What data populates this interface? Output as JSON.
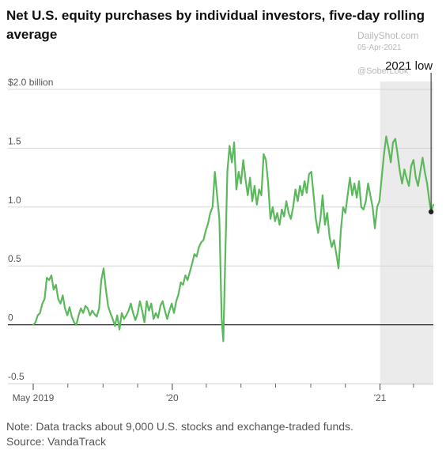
{
  "title": "Net U.S. equity purchases by individual investors, five-day rolling average",
  "watermark": {
    "site": "DailyShot.com",
    "date": "05-Apr-2021",
    "handle": "@SoberLook"
  },
  "note": "Note: Data tracks about 9,000 U.S. stocks and exchange-traded funds.",
  "source": "Source: VandaTrack",
  "colors": {
    "line": "#5cb85c",
    "shade": "#ebebeb",
    "grid": "#d6d6d6",
    "zero": "#222222"
  },
  "chart_data": {
    "type": "line",
    "title": "Net U.S. equity purchases by individual investors, five-day rolling average",
    "ylabel": "",
    "xlabel": "",
    "ylim": [
      -0.5,
      2.0
    ],
    "y_ticks": [
      {
        "value": 2.0,
        "label": "$2.0 billion"
      },
      {
        "value": 1.5,
        "label": "1.5"
      },
      {
        "value": 1.0,
        "label": "1.0"
      },
      {
        "value": 0.5,
        "label": "0.5"
      },
      {
        "value": 0,
        "label": "0"
      },
      {
        "value": -0.5,
        "label": "-0.5"
      }
    ],
    "x_range": [
      "2019-05-01",
      "2021-04-05"
    ],
    "x_ticks": [
      {
        "date": "2019-05-01",
        "label": "May 2019"
      },
      {
        "date": "2020-01-01",
        "label": "'20"
      },
      {
        "date": "2021-01-01",
        "label": "'21"
      }
    ],
    "x_minor_ticks": [
      "2019-07-01",
      "2019-09-01",
      "2019-11-01",
      "2020-03-01",
      "2020-05-01",
      "2020-07-01",
      "2020-09-01",
      "2020-11-01",
      "2021-03-01"
    ],
    "shaded_region": [
      "2021-01-01",
      "2021-04-05"
    ],
    "annotation": {
      "label": "2021 low",
      "date": "2021-04-01",
      "value": 0.96
    },
    "grid": true,
    "series": [
      {
        "points": [
          [
            "2019-05-01",
            0.0
          ],
          [
            "2019-05-05",
            0.02
          ],
          [
            "2019-05-09",
            0.08
          ],
          [
            "2019-05-13",
            0.1
          ],
          [
            "2019-05-17",
            0.18
          ],
          [
            "2019-05-21",
            0.22
          ],
          [
            "2019-05-25",
            0.4
          ],
          [
            "2019-05-29",
            0.38
          ],
          [
            "2019-06-02",
            0.42
          ],
          [
            "2019-06-06",
            0.3
          ],
          [
            "2019-06-10",
            0.34
          ],
          [
            "2019-06-14",
            0.22
          ],
          [
            "2019-06-18",
            0.18
          ],
          [
            "2019-06-22",
            0.25
          ],
          [
            "2019-06-26",
            0.14
          ],
          [
            "2019-06-30",
            0.08
          ],
          [
            "2019-07-04",
            0.15
          ],
          [
            "2019-07-08",
            0.07
          ],
          [
            "2019-07-12",
            0.02
          ],
          [
            "2019-07-16",
            0.0
          ],
          [
            "2019-07-20",
            0.08
          ],
          [
            "2019-07-24",
            0.14
          ],
          [
            "2019-07-28",
            0.1
          ],
          [
            "2019-08-01",
            0.16
          ],
          [
            "2019-08-05",
            0.14
          ],
          [
            "2019-08-09",
            0.08
          ],
          [
            "2019-08-13",
            0.12
          ],
          [
            "2019-08-17",
            0.09
          ],
          [
            "2019-08-21",
            0.07
          ],
          [
            "2019-08-25",
            0.14
          ],
          [
            "2019-08-29",
            0.38
          ],
          [
            "2019-09-02",
            0.48
          ],
          [
            "2019-09-06",
            0.3
          ],
          [
            "2019-09-10",
            0.16
          ],
          [
            "2019-09-14",
            0.1
          ],
          [
            "2019-09-18",
            0.05
          ],
          [
            "2019-09-22",
            -0.01
          ],
          [
            "2019-09-26",
            0.08
          ],
          [
            "2019-09-30",
            -0.04
          ],
          [
            "2019-10-04",
            0.1
          ],
          [
            "2019-10-08",
            0.05
          ],
          [
            "2019-10-12",
            0.08
          ],
          [
            "2019-10-16",
            0.12
          ],
          [
            "2019-10-20",
            0.18
          ],
          [
            "2019-10-24",
            0.1
          ],
          [
            "2019-10-28",
            0.04
          ],
          [
            "2019-11-01",
            0.1
          ],
          [
            "2019-11-05",
            0.2
          ],
          [
            "2019-11-09",
            0.12
          ],
          [
            "2019-11-13",
            0.02
          ],
          [
            "2019-11-17",
            0.2
          ],
          [
            "2019-11-21",
            0.12
          ],
          [
            "2019-11-25",
            0.18
          ],
          [
            "2019-11-29",
            0.05
          ],
          [
            "2019-12-03",
            0.1
          ],
          [
            "2019-12-07",
            0.06
          ],
          [
            "2019-12-11",
            0.16
          ],
          [
            "2019-12-15",
            0.2
          ],
          [
            "2019-12-19",
            0.12
          ],
          [
            "2019-12-23",
            0.05
          ],
          [
            "2019-12-27",
            0.12
          ],
          [
            "2019-12-31",
            0.18
          ],
          [
            "2020-01-04",
            0.1
          ],
          [
            "2020-01-08",
            0.2
          ],
          [
            "2020-01-12",
            0.26
          ],
          [
            "2020-01-16",
            0.36
          ],
          [
            "2020-01-20",
            0.34
          ],
          [
            "2020-01-24",
            0.42
          ],
          [
            "2020-01-28",
            0.38
          ],
          [
            "2020-02-01",
            0.45
          ],
          [
            "2020-02-05",
            0.52
          ],
          [
            "2020-02-09",
            0.6
          ],
          [
            "2020-02-13",
            0.58
          ],
          [
            "2020-02-17",
            0.66
          ],
          [
            "2020-02-21",
            0.7
          ],
          [
            "2020-02-25",
            0.72
          ],
          [
            "2020-02-29",
            0.8
          ],
          [
            "2020-03-04",
            0.86
          ],
          [
            "2020-03-08",
            0.95
          ],
          [
            "2020-03-12",
            1.0
          ],
          [
            "2020-03-16",
            1.3
          ],
          [
            "2020-03-20",
            1.1
          ],
          [
            "2020-03-24",
            0.9
          ],
          [
            "2020-03-28",
            0.05
          ],
          [
            "2020-03-31",
            -0.14
          ],
          [
            "2020-04-03",
            0.5
          ],
          [
            "2020-04-07",
            1.3
          ],
          [
            "2020-04-11",
            1.52
          ],
          [
            "2020-04-15",
            1.38
          ],
          [
            "2020-04-19",
            1.55
          ],
          [
            "2020-04-23",
            1.15
          ],
          [
            "2020-04-27",
            1.3
          ],
          [
            "2020-05-01",
            1.2
          ],
          [
            "2020-05-05",
            1.4
          ],
          [
            "2020-05-09",
            1.24
          ],
          [
            "2020-05-13",
            1.1
          ],
          [
            "2020-05-17",
            1.25
          ],
          [
            "2020-05-21",
            1.05
          ],
          [
            "2020-05-25",
            1.18
          ],
          [
            "2020-05-29",
            1.02
          ],
          [
            "2020-06-02",
            1.15
          ],
          [
            "2020-06-06",
            1.1
          ],
          [
            "2020-06-10",
            1.45
          ],
          [
            "2020-06-14",
            1.4
          ],
          [
            "2020-06-18",
            1.2
          ],
          [
            "2020-06-22",
            0.9
          ],
          [
            "2020-06-26",
            1.0
          ],
          [
            "2020-06-30",
            0.88
          ],
          [
            "2020-07-04",
            0.95
          ],
          [
            "2020-07-08",
            0.85
          ],
          [
            "2020-07-12",
            0.98
          ],
          [
            "2020-07-16",
            0.92
          ],
          [
            "2020-07-20",
            1.05
          ],
          [
            "2020-07-24",
            0.95
          ],
          [
            "2020-07-28",
            0.9
          ],
          [
            "2020-08-01",
            1.0
          ],
          [
            "2020-08-05",
            1.15
          ],
          [
            "2020-08-09",
            1.05
          ],
          [
            "2020-08-13",
            1.18
          ],
          [
            "2020-08-17",
            1.1
          ],
          [
            "2020-08-21",
            1.22
          ],
          [
            "2020-08-25",
            1.12
          ],
          [
            "2020-08-29",
            1.28
          ],
          [
            "2020-09-02",
            1.3
          ],
          [
            "2020-09-06",
            1.1
          ],
          [
            "2020-09-10",
            0.9
          ],
          [
            "2020-09-14",
            0.78
          ],
          [
            "2020-09-18",
            0.9
          ],
          [
            "2020-09-22",
            1.1
          ],
          [
            "2020-09-26",
            0.85
          ],
          [
            "2020-09-30",
            0.95
          ],
          [
            "2020-10-04",
            0.75
          ],
          [
            "2020-10-08",
            0.66
          ],
          [
            "2020-10-12",
            0.72
          ],
          [
            "2020-10-16",
            0.6
          ],
          [
            "2020-10-20",
            0.48
          ],
          [
            "2020-10-24",
            0.8
          ],
          [
            "2020-10-28",
            1.0
          ],
          [
            "2020-11-01",
            0.95
          ],
          [
            "2020-11-05",
            1.1
          ],
          [
            "2020-11-09",
            1.25
          ],
          [
            "2020-11-13",
            1.1
          ],
          [
            "2020-11-17",
            1.2
          ],
          [
            "2020-11-21",
            1.08
          ],
          [
            "2020-11-25",
            1.22
          ],
          [
            "2020-11-29",
            1.0
          ],
          [
            "2020-12-03",
            0.98
          ],
          [
            "2020-12-07",
            1.05
          ],
          [
            "2020-12-11",
            1.2
          ],
          [
            "2020-12-15",
            1.1
          ],
          [
            "2020-12-19",
            1.0
          ],
          [
            "2020-12-23",
            0.82
          ],
          [
            "2020-12-27",
            1.0
          ],
          [
            "2020-12-31",
            1.05
          ],
          [
            "2021-01-04",
            1.25
          ],
          [
            "2021-01-08",
            1.45
          ],
          [
            "2021-01-12",
            1.6
          ],
          [
            "2021-01-16",
            1.5
          ],
          [
            "2021-01-20",
            1.38
          ],
          [
            "2021-01-24",
            1.55
          ],
          [
            "2021-01-28",
            1.58
          ],
          [
            "2021-02-01",
            1.45
          ],
          [
            "2021-02-05",
            1.3
          ],
          [
            "2021-02-09",
            1.2
          ],
          [
            "2021-02-13",
            1.32
          ],
          [
            "2021-02-17",
            1.24
          ],
          [
            "2021-02-21",
            1.18
          ],
          [
            "2021-02-25",
            1.35
          ],
          [
            "2021-03-01",
            1.4
          ],
          [
            "2021-03-05",
            1.25
          ],
          [
            "2021-03-09",
            1.18
          ],
          [
            "2021-03-13",
            1.3
          ],
          [
            "2021-03-17",
            1.42
          ],
          [
            "2021-03-21",
            1.3
          ],
          [
            "2021-03-25",
            1.2
          ],
          [
            "2021-03-29",
            1.05
          ],
          [
            "2021-04-01",
            0.96
          ],
          [
            "2021-04-05",
            1.02
          ]
        ]
      }
    ]
  }
}
